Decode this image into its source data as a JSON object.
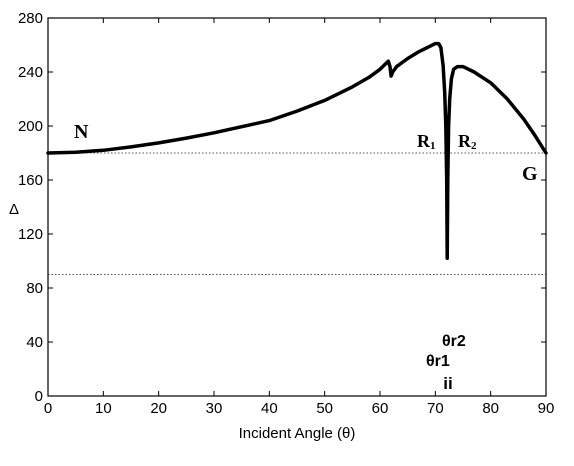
{
  "chart_data": {
    "type": "line",
    "title": "",
    "xlabel": "Incident Angle (θ)",
    "ylabel": "Δ",
    "xlim": [
      0,
      90
    ],
    "ylim": [
      0,
      280
    ],
    "x_ticks": [
      0,
      10,
      20,
      30,
      40,
      50,
      60,
      70,
      80,
      90
    ],
    "y_ticks": [
      0,
      40,
      80,
      120,
      160,
      200,
      240,
      280
    ],
    "x_tick_labels": [
      "0",
      "10",
      "20",
      "30",
      "40",
      "50",
      "60",
      "70",
      "80",
      "90"
    ],
    "y_tick_labels": [
      "0",
      "40",
      "80",
      "120",
      "160",
      "200",
      "240",
      "280"
    ],
    "grid": false,
    "series": [
      {
        "color": "#000000",
        "points": [
          [
            0,
            180
          ],
          [
            5,
            180.5
          ],
          [
            10,
            182
          ],
          [
            15,
            184.5
          ],
          [
            20,
            187.5
          ],
          [
            25,
            191
          ],
          [
            30,
            195
          ],
          [
            35,
            199.5
          ],
          [
            40,
            204
          ],
          [
            45,
            211
          ],
          [
            50,
            219
          ],
          [
            55,
            229
          ],
          [
            58,
            236
          ],
          [
            60,
            242
          ],
          [
            61,
            246
          ],
          [
            61.5,
            248
          ],
          [
            61.8,
            244
          ],
          [
            62,
            237
          ],
          [
            62.3,
            240
          ],
          [
            63,
            244
          ],
          [
            65,
            250
          ],
          [
            67,
            255
          ],
          [
            69,
            259
          ],
          [
            70,
            261
          ],
          [
            70.6,
            261
          ],
          [
            71,
            258
          ],
          [
            71.4,
            245
          ],
          [
            71.7,
            225
          ],
          [
            71.9,
            200
          ],
          [
            72.05,
            160
          ],
          [
            72.15,
            102
          ],
          [
            72.25,
            160
          ],
          [
            72.4,
            200
          ],
          [
            72.6,
            220
          ],
          [
            72.9,
            235
          ],
          [
            73.3,
            242
          ],
          [
            74,
            244
          ],
          [
            75,
            244
          ],
          [
            77,
            240
          ],
          [
            80,
            232
          ],
          [
            83,
            220
          ],
          [
            86,
            205
          ],
          [
            88,
            193
          ],
          [
            90,
            180
          ]
        ]
      }
    ],
    "reference_lines": [
      {
        "axis": "y",
        "value": 180,
        "style": "dotted"
      },
      {
        "axis": "y",
        "value": 90,
        "style": "dotted"
      }
    ],
    "annotations": {
      "N": "N",
      "R1_main": "R",
      "R1_sub": "1",
      "R2_main": "R",
      "R2_sub": "2",
      "G": "G",
      "theta_r1": "θr1",
      "theta_r2": "θr2",
      "theta_marker": "ii"
    }
  }
}
